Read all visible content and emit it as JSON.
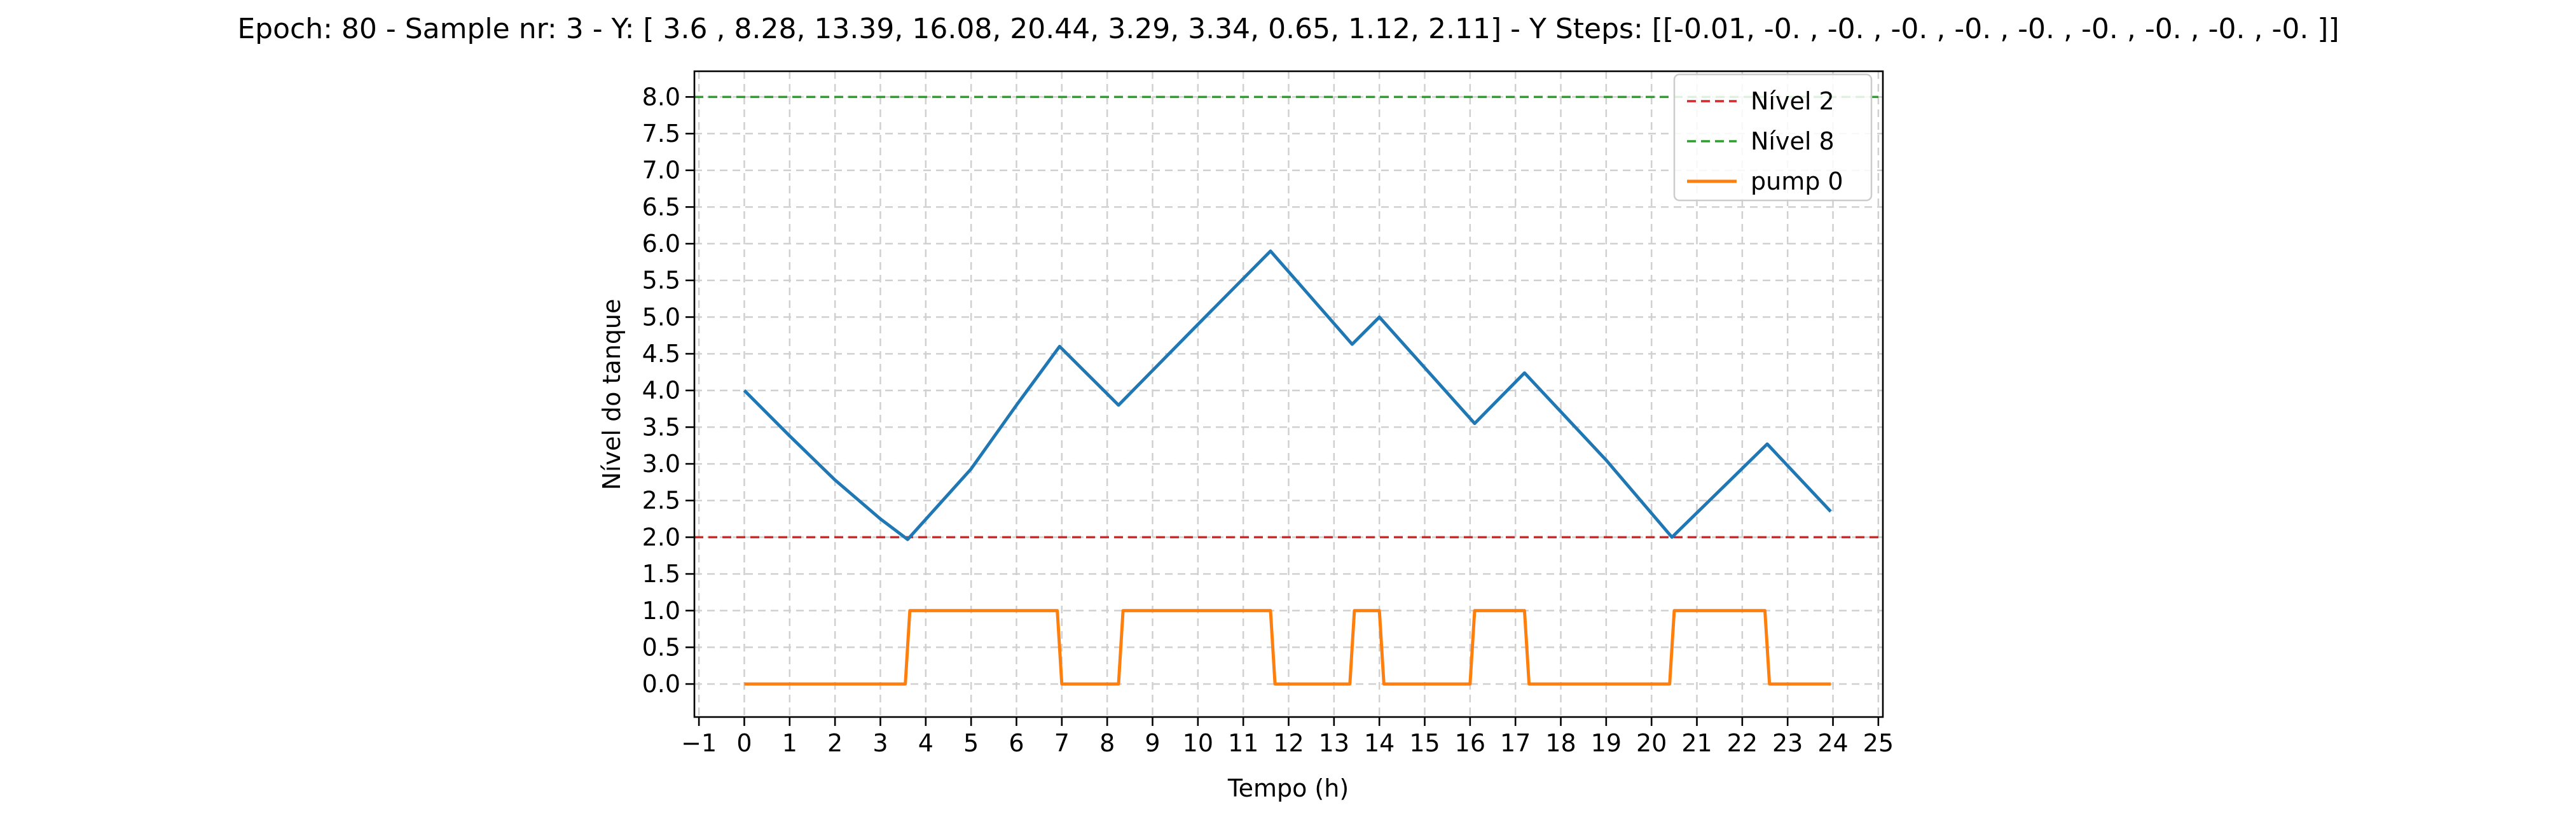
{
  "chart_data": {
    "type": "line",
    "title": "Epoch: 80 - Sample nr: 3 - Y: [ 3.6 ,  8.28, 13.39, 16.08, 20.44,  3.29,  3.34,  0.65,  1.12,  2.11] - Y Steps: [[-0.01, -0.  , -0.  , -0.  , -0.  , -0.  , -0.  , -0.  , -0.  , -0.  ]]",
    "xlabel": "Tempo (h)",
    "ylabel": "Nível do tanque",
    "xlim": [
      -1.1,
      25.1
    ],
    "ylim": [
      -0.45,
      8.35
    ],
    "xticks": [
      -1,
      0,
      1,
      2,
      3,
      4,
      5,
      6,
      7,
      8,
      9,
      10,
      11,
      12,
      13,
      14,
      15,
      16,
      17,
      18,
      19,
      20,
      21,
      22,
      23,
      24,
      25
    ],
    "yticks": [
      0.0,
      0.5,
      1.0,
      1.5,
      2.0,
      2.5,
      3.0,
      3.5,
      4.0,
      4.5,
      5.0,
      5.5,
      6.0,
      6.5,
      7.0,
      7.5,
      8.0
    ],
    "grid": true,
    "legend_position": "top-right",
    "legend": [
      {
        "label": "Nível 2",
        "color": "#d62728",
        "style": "dashed"
      },
      {
        "label": "Nível 8",
        "color": "#2ca02c",
        "style": "dashed"
      },
      {
        "label": "pump 0",
        "color": "#ff7f0e",
        "style": "solid"
      }
    ],
    "reference_lines": [
      {
        "name": "Nível 2",
        "y": 2,
        "color": "#d62728"
      },
      {
        "name": "Nível 8",
        "y": 8,
        "color": "#2ca02c"
      }
    ],
    "series": [
      {
        "name": "",
        "color": "#1f77b4",
        "points": [
          [
            0,
            4.0
          ],
          [
            1,
            3.38
          ],
          [
            2,
            2.78
          ],
          [
            3,
            2.25
          ],
          [
            3.6,
            1.97
          ],
          [
            5,
            2.93
          ],
          [
            6,
            3.8
          ],
          [
            6.95,
            4.6
          ],
          [
            8.25,
            3.8
          ],
          [
            10,
            4.9
          ],
          [
            11.6,
            5.9
          ],
          [
            13.4,
            4.63
          ],
          [
            14,
            5.0
          ],
          [
            16.1,
            3.55
          ],
          [
            17.2,
            4.24
          ],
          [
            19,
            3.05
          ],
          [
            20.45,
            2.0
          ],
          [
            22.55,
            3.27
          ],
          [
            23.95,
            2.35
          ]
        ]
      },
      {
        "name": "pump 0",
        "color": "#ff7f0e",
        "points": [
          [
            0,
            0
          ],
          [
            3.55,
            0
          ],
          [
            3.65,
            1
          ],
          [
            6.9,
            1
          ],
          [
            7.0,
            0
          ],
          [
            8.25,
            0
          ],
          [
            8.35,
            1
          ],
          [
            11.6,
            1
          ],
          [
            11.7,
            0
          ],
          [
            13.35,
            0
          ],
          [
            13.45,
            1
          ],
          [
            14.0,
            1
          ],
          [
            14.1,
            0
          ],
          [
            16.0,
            0
          ],
          [
            16.1,
            1
          ],
          [
            17.2,
            1
          ],
          [
            17.3,
            0
          ],
          [
            20.4,
            0
          ],
          [
            20.5,
            1
          ],
          [
            22.5,
            1
          ],
          [
            22.6,
            0
          ],
          [
            23.95,
            0
          ]
        ]
      }
    ]
  }
}
